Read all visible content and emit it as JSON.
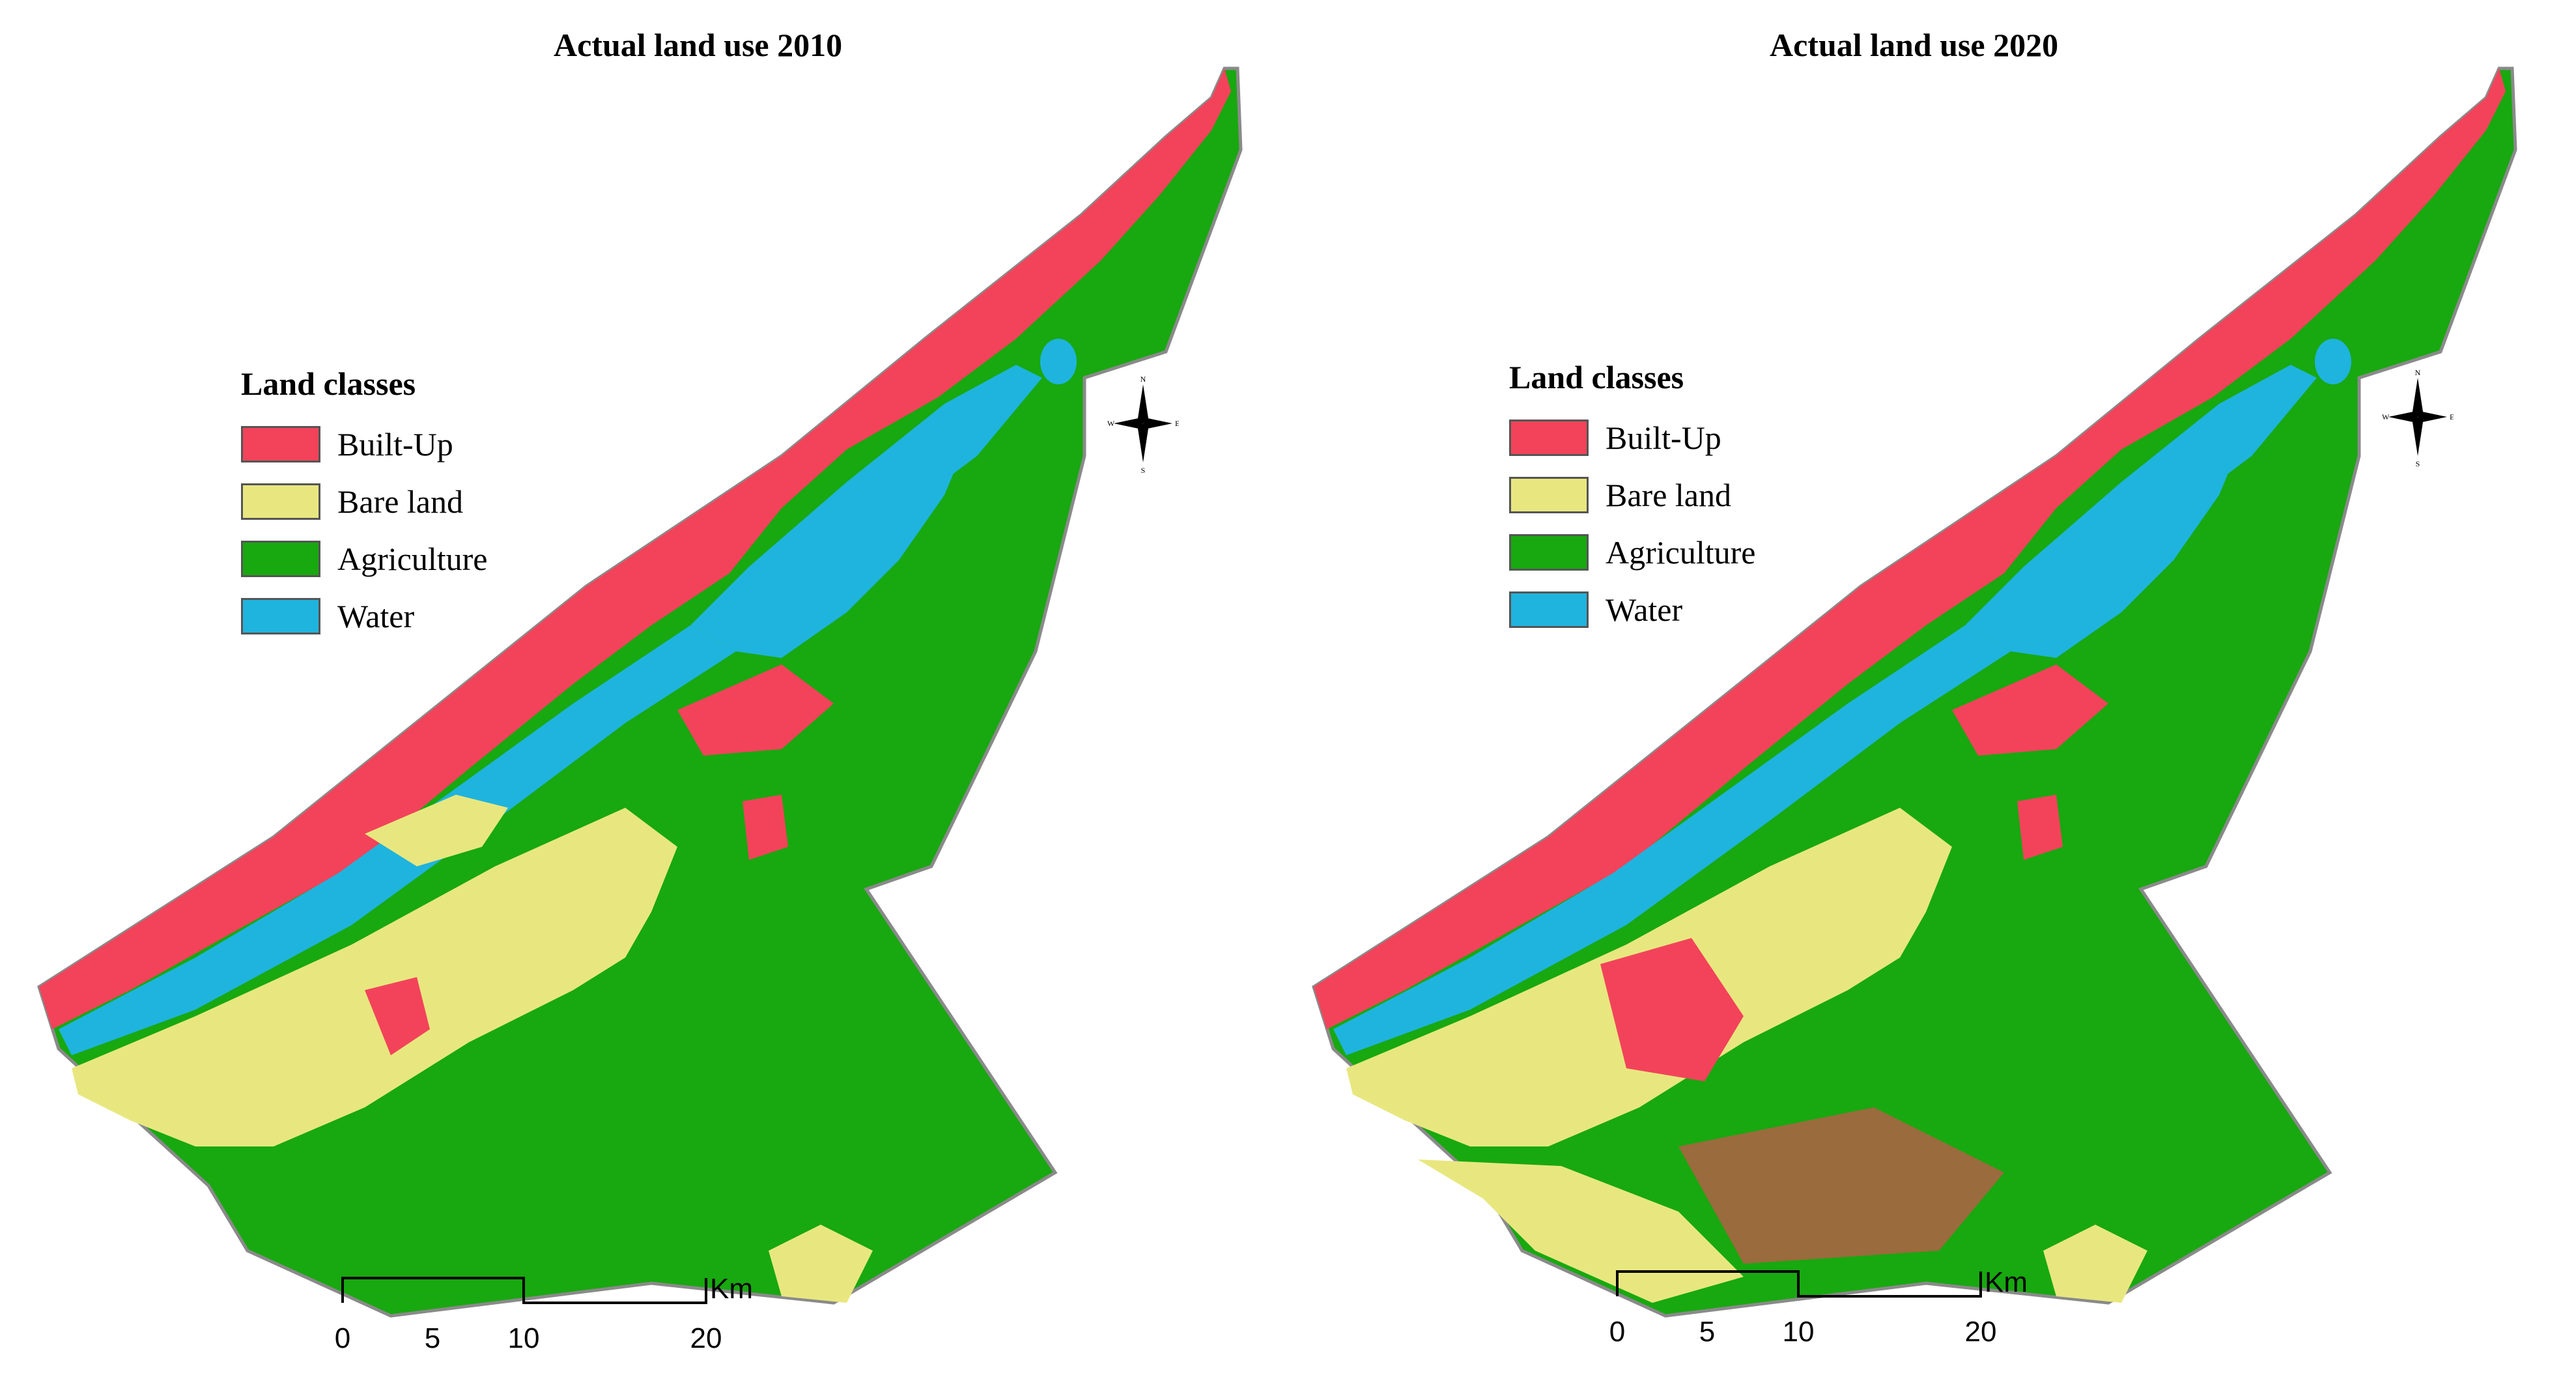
{
  "colors": {
    "built_up": "#f2435a",
    "bare_land": "#e8e77f",
    "agriculture": "#18a810",
    "water": "#1fb4dd",
    "outline": "#8a8a8a"
  },
  "panels": [
    {
      "title": "Actual land use 2010",
      "legend": {
        "title": "Land classes",
        "items": [
          {
            "label": "Built-Up",
            "color": "#f2435a"
          },
          {
            "label": "Bare land",
            "color": "#e8e77f"
          },
          {
            "label": "Agriculture",
            "color": "#18a810"
          },
          {
            "label": "Water",
            "color": "#1fb4dd"
          }
        ]
      },
      "scalebar": {
        "ticks": [
          "0",
          "5",
          "10",
          "20"
        ],
        "unit": "Km"
      },
      "compass": {
        "n": "N",
        "s": "S",
        "e": "E",
        "w": "W",
        "icon": "north-arrow-compass-icon"
      }
    },
    {
      "title": "Actual land use 2020",
      "legend": {
        "title": "Land classes",
        "items": [
          {
            "label": "Built-Up",
            "color": "#f2435a"
          },
          {
            "label": "Bare land",
            "color": "#e8e77f"
          },
          {
            "label": "Agriculture",
            "color": "#18a810"
          },
          {
            "label": "Water",
            "color": "#1fb4dd"
          }
        ]
      },
      "scalebar": {
        "ticks": [
          "0",
          "5",
          "10",
          "20"
        ],
        "unit": "Km"
      },
      "compass": {
        "n": "N",
        "s": "S",
        "e": "E",
        "w": "W",
        "icon": "north-arrow-compass-icon"
      }
    }
  ]
}
